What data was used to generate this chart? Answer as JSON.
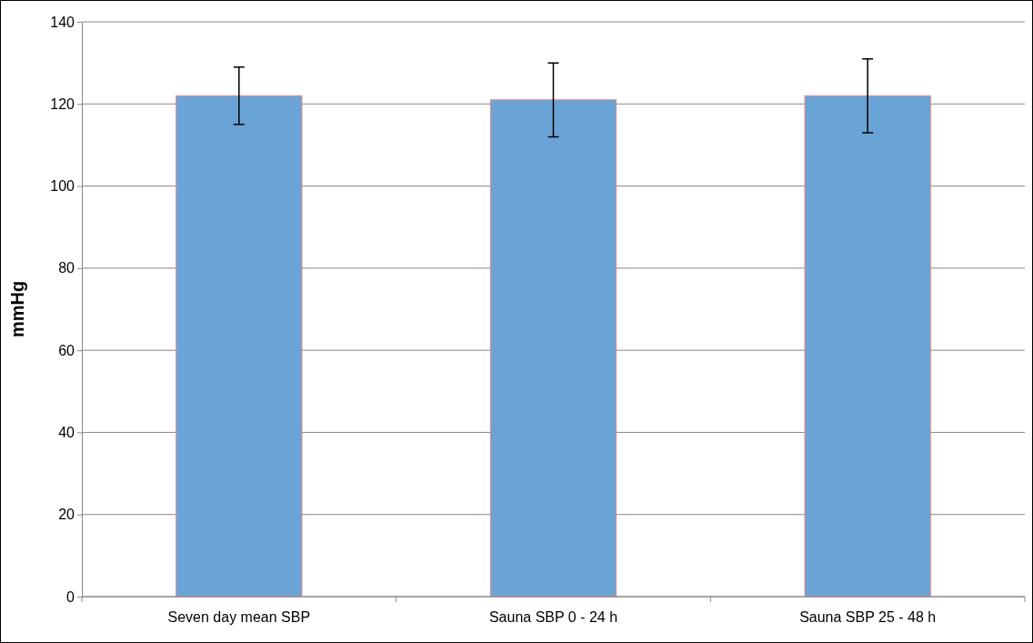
{
  "chart_data": {
    "type": "bar",
    "ylabel": "mmHg",
    "categories": [
      "Seven day mean SBP",
      "Sauna SBP 0 - 24 h",
      "Sauna SBP 25 - 48 h"
    ],
    "values": [
      122,
      121,
      122
    ],
    "color": "#6aa3d6",
    "errors": [
      [
        115,
        129
      ],
      [
        112,
        130
      ],
      [
        113,
        131
      ]
    ],
    "ylim": [
      0,
      140
    ],
    "yticks": [
      0,
      20,
      40,
      60,
      80,
      100,
      120,
      140
    ],
    "grid": "y"
  }
}
